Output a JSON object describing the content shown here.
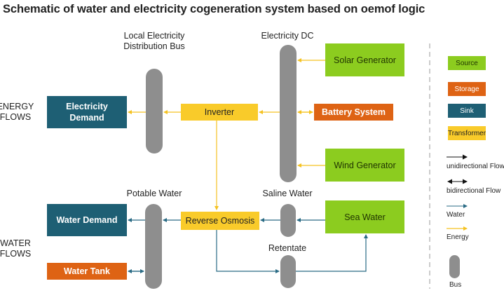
{
  "title": "Schematic of water and electricity cogeneration system based on oemof logic",
  "side_labels": {
    "energy_flows": "ENERGY\nFLOWS",
    "water_flows": "WATER\nFLOWS"
  },
  "bus_labels": {
    "local_bus": "Local Electricity\nDistribution Bus",
    "electricity_dc": "Electricity DC",
    "potable_water": "Potable Water",
    "saline_water": "Saline Water",
    "retentate": "Retentate"
  },
  "nodes": {
    "solar_generator": "Solar Generator",
    "battery_system": "Battery System",
    "wind_generator": "Wind Generator",
    "inverter": "Inverter",
    "electricity_demand": "Electricity\nDemand",
    "reverse_osmosis": "Reverse Osmosis",
    "sea_water": "Sea Water",
    "water_demand": "Water Demand",
    "water_tank": "Water Tank"
  },
  "legend": {
    "source": "Source",
    "storage": "Storage",
    "sink": "Sink",
    "transformer": "Transformer",
    "unidirectional": "unidirectional Flow",
    "bidirectional": "bidirectional Flow",
    "water": "Water",
    "energy": "Energy",
    "bus": "Bus"
  },
  "colors": {
    "source": "#8ccc1f",
    "storage": "#de6314",
    "sink": "#1e5f74",
    "transformer": "#f9cb2a",
    "bus": "#8e8e8e",
    "water_flow": "#2a6b85",
    "energy_flow": "#f5c221"
  }
}
